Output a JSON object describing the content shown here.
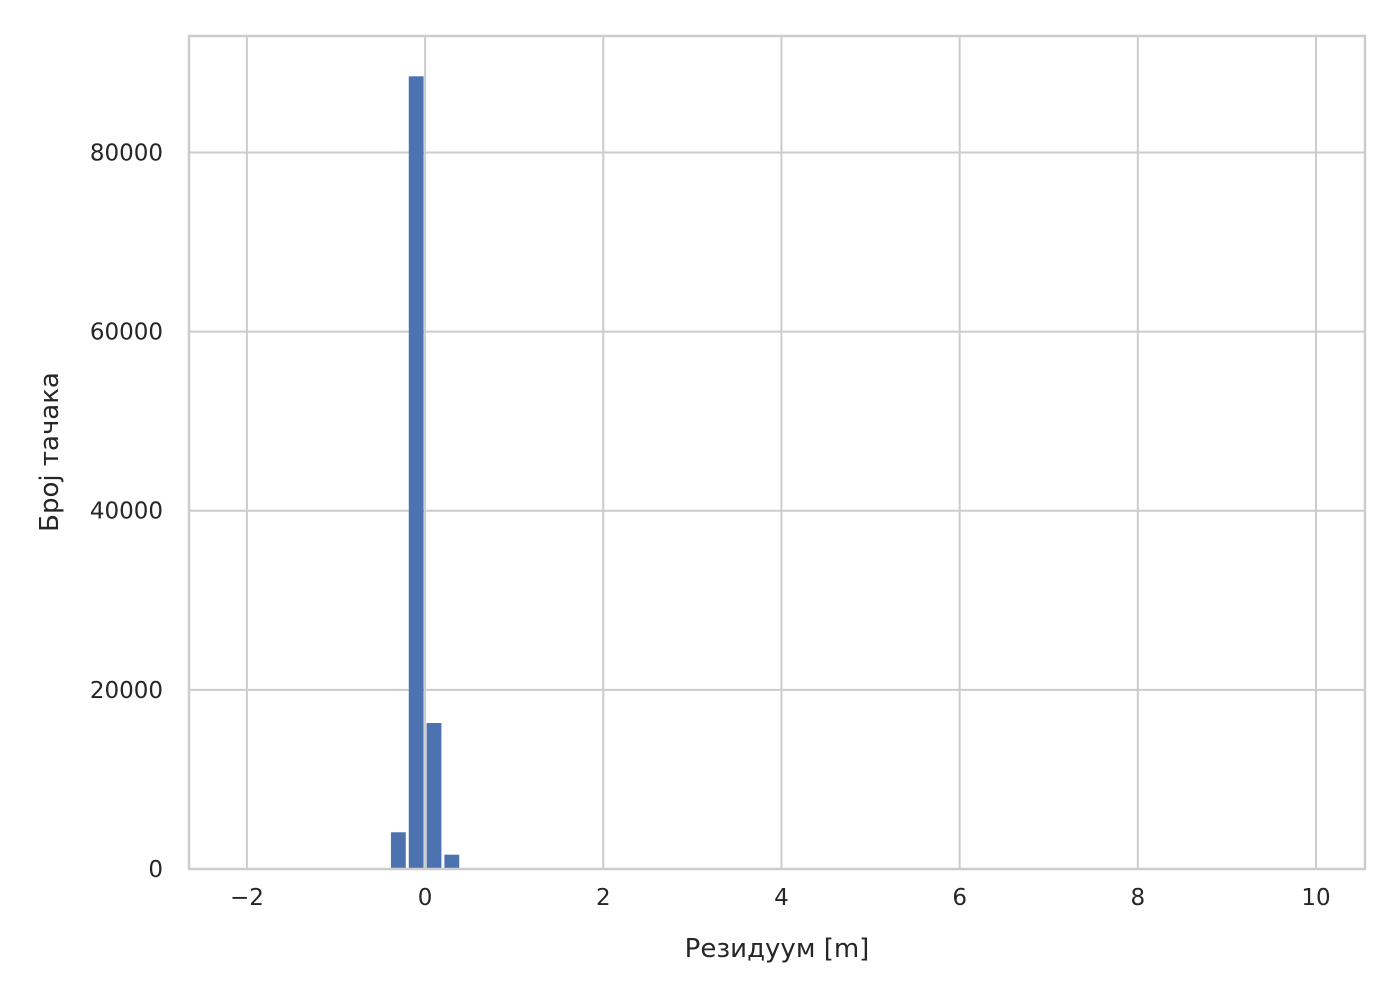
{
  "chart_data": {
    "type": "bar",
    "bin_edges": [
      -2.2,
      -2.0,
      -1.8,
      -1.6,
      -1.4,
      -1.2,
      -1.0,
      -0.8,
      -0.6,
      -0.4,
      -0.2,
      0.0,
      0.2,
      0.4,
      0.6,
      0.8,
      1.0
    ],
    "values": [
      0,
      0,
      0,
      0,
      0,
      0,
      0,
      0,
      0,
      4100,
      88500,
      16300,
      1600,
      0,
      0,
      0
    ],
    "bar_color": "#4c72b0",
    "xlabel": "Резидуум [m]",
    "ylabel": "Број тачака",
    "xlim": [
      -2.65,
      10.55
    ],
    "ylim": [
      0,
      93000
    ],
    "xticks": [
      -2,
      0,
      2,
      4,
      6,
      8,
      10
    ],
    "xtick_labels": [
      "−2",
      "0",
      "2",
      "4",
      "6",
      "8",
      "10"
    ],
    "yticks": [
      0,
      20000,
      40000,
      60000,
      80000
    ],
    "ytick_labels": [
      "0",
      "20000",
      "40000",
      "60000",
      "80000"
    ],
    "grid": true
  }
}
